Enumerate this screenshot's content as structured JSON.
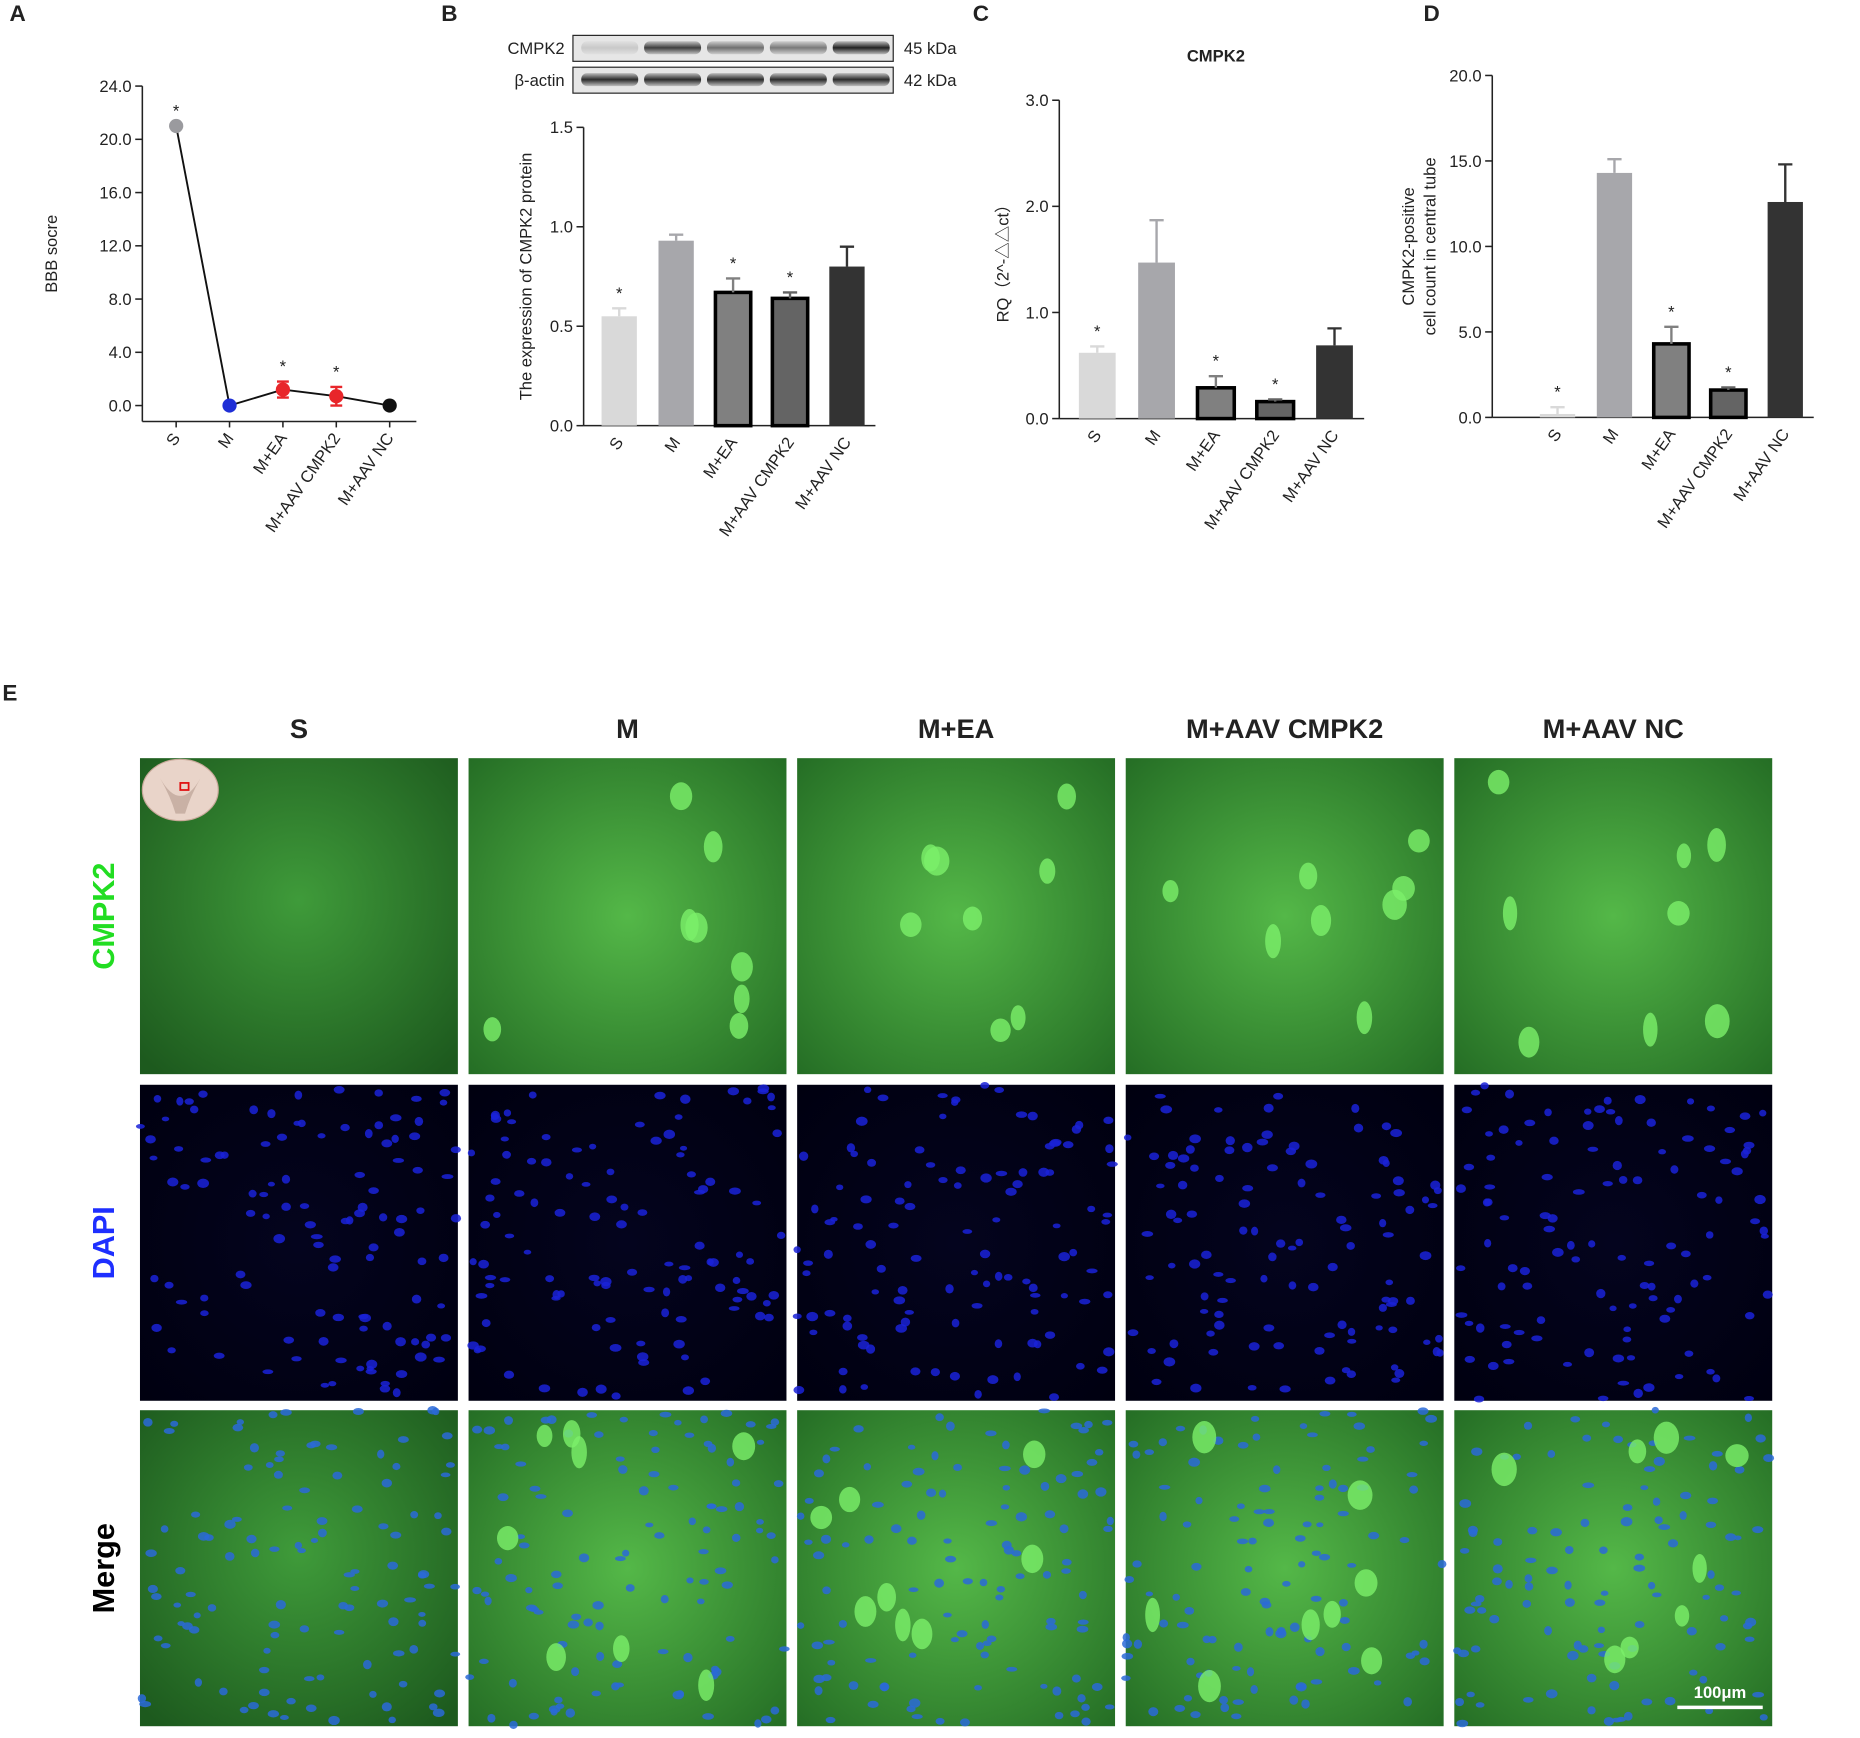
{
  "chart_data": [
    {
      "type": "line",
      "panel_label": "A",
      "y_label": "BBB socre",
      "categories": [
        "S",
        "M",
        "M+EA",
        "M+AAV CMPK2",
        "M+AAV NC"
      ],
      "values": [
        21,
        0,
        1.2,
        0.7,
        0
      ],
      "errors": [
        0,
        0,
        0.6,
        0.7,
        0
      ],
      "colors": [
        "#9a9a9e",
        "#1f2fd6",
        "#e8262a",
        "#e8262a",
        "#111111"
      ],
      "line_color": "#111111",
      "annotations": [
        "*",
        null,
        "*",
        "*",
        null
      ],
      "ylim": [
        -1.2,
        24
      ],
      "yticks": [
        {
          "value": 0,
          "label": "0.0"
        },
        {
          "value": 4,
          "label": "4.0"
        },
        {
          "value": 8,
          "label": "8.0"
        },
        {
          "value": 12,
          "label": "12.0"
        },
        {
          "value": 16,
          "label": "16.0"
        },
        {
          "value": 20,
          "label": "20.0"
        },
        {
          "value": 24,
          "label": "24.0"
        }
      ]
    },
    {
      "type": "bar",
      "panel_label": "B",
      "y_label": "The expression of CMPK2 protein",
      "blot": [
        {
          "label": "CMPK2",
          "size": "45 kDa"
        },
        {
          "label": "β-actin",
          "size": "42 kDa"
        }
      ],
      "categories": [
        "S",
        "M",
        "M+EA",
        "M+AAV CMPK2",
        "M+AAV NC"
      ],
      "values": [
        0.55,
        0.93,
        0.67,
        0.64,
        0.8
      ],
      "errors": [
        0.04,
        0.03,
        0.07,
        0.03,
        0.1
      ],
      "colors": [
        "#d9d9d9",
        "#a7a7ab",
        "#808080",
        "#646464",
        "#333333"
      ],
      "outlined": [
        false,
        false,
        true,
        true,
        false
      ],
      "annotations": [
        "*",
        null,
        "*",
        "*",
        null
      ],
      "ylim": [
        0,
        1.5
      ],
      "yticks": [
        {
          "value": 0,
          "label": "0.0"
        },
        {
          "value": 0.5,
          "label": "0.5"
        },
        {
          "value": 1,
          "label": "1.0"
        },
        {
          "value": 1.5,
          "label": "1.5"
        }
      ]
    },
    {
      "type": "bar",
      "panel_label": "C",
      "title": "CMPK2",
      "y_label": "RQ（2^-△△ct）",
      "categories": [
        "S",
        "M",
        "M+EA",
        "M+AAV CMPK2",
        "M+AAV NC"
      ],
      "values": [
        0.62,
        1.47,
        0.29,
        0.16,
        0.69
      ],
      "errors": [
        0.06,
        0.4,
        0.11,
        0.02,
        0.16
      ],
      "colors": [
        "#d9d9d9",
        "#a7a7ab",
        "#808080",
        "#646464",
        "#333333"
      ],
      "outlined": [
        false,
        false,
        true,
        true,
        false
      ],
      "annotations": [
        "*",
        null,
        "*",
        "*",
        null
      ],
      "ylim": [
        0,
        3
      ],
      "yticks": [
        {
          "value": 0,
          "label": "0.0"
        },
        {
          "value": 1,
          "label": "1.0"
        },
        {
          "value": 2,
          "label": "2.0"
        },
        {
          "value": 3,
          "label": "3.0"
        }
      ]
    },
    {
      "type": "bar",
      "panel_label": "D",
      "y_label": [
        "CMPK2-positive",
        "cell count in central tube"
      ],
      "categories": [
        "S",
        "M",
        "M+EA",
        "M+AAV CMPK2",
        "M+AAV NC"
      ],
      "values": [
        0.2,
        14.3,
        4.3,
        1.6,
        12.6
      ],
      "errors": [
        0.4,
        0.8,
        1.0,
        0.15,
        2.2
      ],
      "colors": [
        "#d9d9d9",
        "#a7a7ab",
        "#808080",
        "#646464",
        "#333333"
      ],
      "outlined": [
        false,
        false,
        true,
        true,
        false
      ],
      "annotations": [
        "*",
        null,
        "*",
        "*",
        null
      ],
      "ylim": [
        0,
        20
      ],
      "yticks": [
        {
          "value": 0,
          "label": "0.0"
        },
        {
          "value": 5,
          "label": "5.0"
        },
        {
          "value": 10,
          "label": "10.0"
        },
        {
          "value": 15,
          "label": "15.0"
        },
        {
          "value": 20,
          "label": "20.0"
        }
      ]
    }
  ],
  "panel_e": {
    "panel_label": "E",
    "columns": [
      "S",
      "M",
      "M+EA",
      "M+AAV CMPK2",
      "M+AAV NC"
    ],
    "rows": [
      "CMPK2",
      "DAPI",
      "Merge"
    ],
    "scale_bar": "100μm"
  }
}
